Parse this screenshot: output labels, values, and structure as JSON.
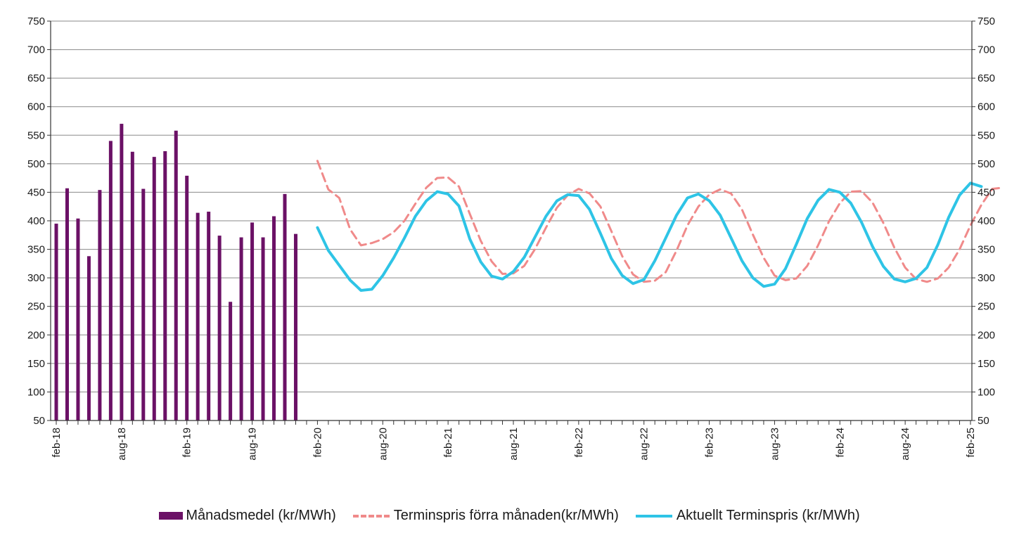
{
  "chart_data": {
    "type": "bar+line",
    "title": "",
    "xlabel": "",
    "ylabel": "",
    "ylim": [
      50,
      750
    ],
    "y_ticks": [
      50,
      100,
      150,
      200,
      250,
      300,
      350,
      400,
      450,
      500,
      550,
      600,
      650,
      700,
      750
    ],
    "y_tick_labels": [
      "50",
      "100",
      "150",
      "200",
      "250",
      "300",
      "350",
      "400",
      "450",
      "500",
      "550",
      "600",
      "650",
      "700",
      "750"
    ],
    "x_ticks": [
      {
        "month_index": 0,
        "label": "feb-18"
      },
      {
        "month_index": 6,
        "label": "aug-18"
      },
      {
        "month_index": 12,
        "label": "feb-19"
      },
      {
        "month_index": 18,
        "label": "aug-19"
      },
      {
        "month_index": 24,
        "label": "feb-20"
      },
      {
        "month_index": 30,
        "label": "aug-20"
      },
      {
        "month_index": 36,
        "label": "feb-21"
      },
      {
        "month_index": 42,
        "label": "aug-21"
      },
      {
        "month_index": 48,
        "label": "feb-22"
      },
      {
        "month_index": 54,
        "label": "aug-22"
      },
      {
        "month_index": 60,
        "label": "feb-23"
      },
      {
        "month_index": 66,
        "label": "aug-23"
      },
      {
        "month_index": 72,
        "label": "feb-24"
      },
      {
        "month_index": 78,
        "label": "aug-24"
      },
      {
        "month_index": 84,
        "label": "feb-25"
      }
    ],
    "month_count": 84,
    "grid": true,
    "right_axis": true,
    "legend_position": "bottom",
    "colors": {
      "bars": "#6b1166",
      "dashed": "#f08a8a",
      "line": "#2ec4e6",
      "grid": "#8a8a8a",
      "axis": "#333333"
    },
    "series": [
      {
        "name": "Månadsmedel (kr/MWh)",
        "kind": "bar",
        "start_month_index": 0,
        "values": [
          395,
          457,
          404,
          338,
          454,
          540,
          570,
          521,
          456,
          512,
          522,
          558,
          479,
          414,
          416,
          374,
          258,
          371,
          397,
          371,
          408,
          447,
          377
        ]
      },
      {
        "name": "Terminspris förra månaden(kr/MWh)",
        "kind": "dashed",
        "start_month_index": 24,
        "values": [
          505,
          455,
          440,
          385,
          357,
          361,
          368,
          380,
          400,
          430,
          458,
          475,
          476,
          460,
          412,
          365,
          329,
          307,
          308,
          321,
          351,
          388,
          423,
          445,
          456,
          448,
          425,
          382,
          338,
          306,
          293,
          295,
          310,
          348,
          392,
          425,
          446,
          455,
          448,
          420,
          376,
          335,
          304,
          296,
          299,
          321,
          357,
          399,
          431,
          451,
          452,
          432,
          396,
          353,
          318,
          298,
          293,
          299,
          318,
          350,
          392,
          428,
          456,
          458
        ]
      },
      {
        "name": "Aktuellt Terminspris (kr/MWh)",
        "kind": "line",
        "start_month_index": 24,
        "values": [
          388,
          348,
          322,
          296,
          278,
          280,
          304,
          335,
          370,
          408,
          435,
          451,
          447,
          426,
          368,
          328,
          303,
          298,
          311,
          336,
          372,
          408,
          435,
          446,
          444,
          420,
          378,
          334,
          304,
          290,
          297,
          330,
          370,
          410,
          440,
          447,
          435,
          410,
          370,
          330,
          300,
          285,
          289,
          316,
          359,
          404,
          436,
          455,
          450,
          431,
          397,
          355,
          320,
          298,
          293,
          299,
          318,
          358,
          406,
          445,
          466,
          460
        ]
      }
    ]
  }
}
